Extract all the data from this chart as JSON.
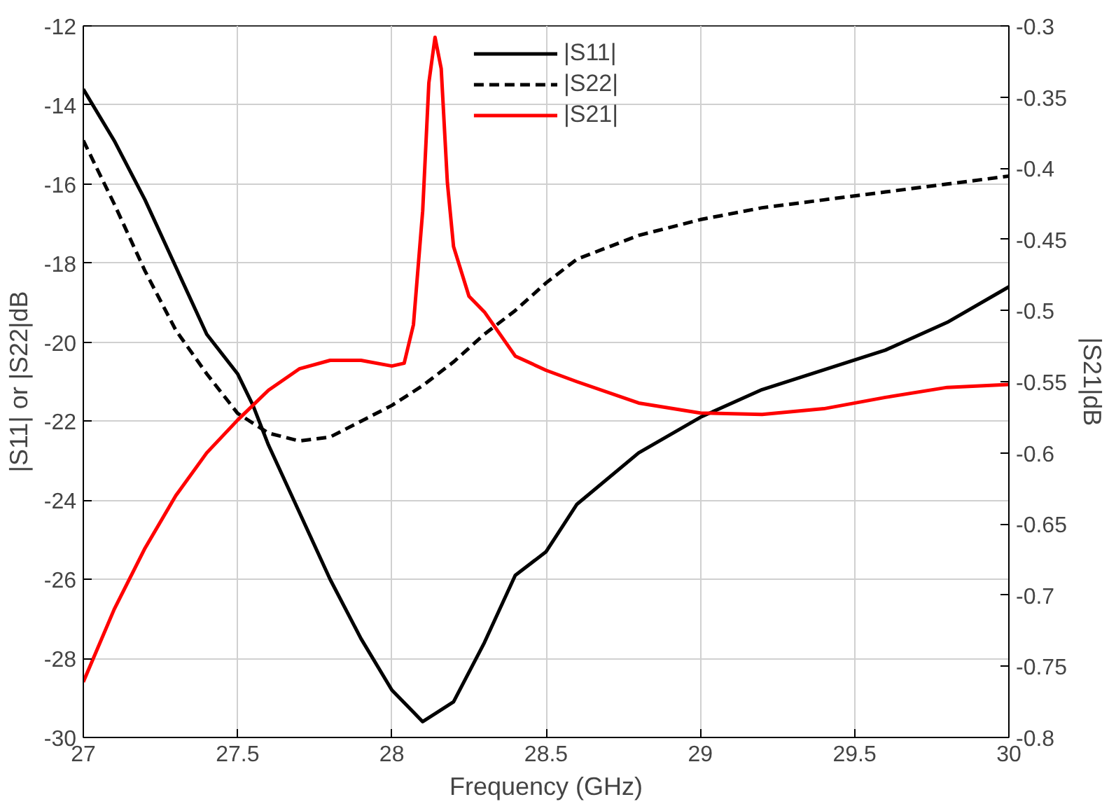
{
  "chart_data": {
    "type": "line",
    "xlabel": "Frequency (GHz)",
    "ylabel": "|S11| or |S22|dB",
    "y2label": "|S21|dB",
    "xlim": [
      27,
      30
    ],
    "xticks": [
      27,
      27.5,
      28,
      28.5,
      29,
      29.5,
      30
    ],
    "ylim": [
      -30,
      -12
    ],
    "yticks": [
      -30,
      -28,
      -26,
      -24,
      -22,
      -20,
      -18,
      -16,
      -14,
      -12
    ],
    "y2lim": [
      -0.8,
      -0.3
    ],
    "y2ticks": [
      -0.8,
      -0.75,
      -0.7,
      -0.65,
      -0.6,
      -0.55,
      -0.5,
      -0.45,
      -0.4,
      -0.35,
      -0.3
    ],
    "grid": true,
    "legend": "top",
    "marker": "none",
    "series": [
      {
        "name": "|S11|",
        "color": "#000000",
        "line_style": "solid",
        "x": [
          27,
          27.1,
          27.2,
          27.3,
          27.4,
          27.5,
          27.55,
          27.6,
          27.7,
          27.8,
          27.9,
          28.0,
          28.1,
          28.2,
          28.3,
          28.4,
          28.5,
          28.6,
          28.8,
          29.0,
          29.2,
          29.4,
          29.6,
          29.8,
          30
        ],
        "values": [
          -13.6,
          -14.9,
          -16.4,
          -18.1,
          -19.8,
          -20.8,
          -21.6,
          -22.6,
          -24.3,
          -26.0,
          -27.5,
          -28.8,
          -29.6,
          -29.1,
          -27.6,
          -25.9,
          -25.3,
          -24.1,
          -22.8,
          -21.9,
          -21.2,
          -20.7,
          -20.2,
          -19.5,
          -18.6
        ]
      },
      {
        "name": "|S22|",
        "color": "#000000",
        "line_style": "dashed",
        "x": [
          27,
          27.1,
          27.2,
          27.3,
          27.4,
          27.5,
          27.6,
          27.7,
          27.8,
          27.9,
          28.0,
          28.1,
          28.2,
          28.3,
          28.4,
          28.5,
          28.6,
          28.8,
          29.0,
          29.2,
          29.4,
          29.6,
          29.8,
          30
        ],
        "values": [
          -14.9,
          -16.5,
          -18.2,
          -19.7,
          -20.8,
          -21.8,
          -22.3,
          -22.5,
          -22.4,
          -22.0,
          -21.6,
          -21.1,
          -20.5,
          -19.8,
          -19.2,
          -18.5,
          -17.9,
          -17.3,
          -16.9,
          -16.6,
          -16.4,
          -16.2,
          -16.0,
          -15.8
        ]
      },
      {
        "name": "|S21|",
        "color": "#ff0000",
        "line_style": "solid",
        "axis": "y2",
        "x": [
          27,
          27.1,
          27.2,
          27.3,
          27.4,
          27.5,
          27.6,
          27.7,
          27.8,
          27.9,
          28.0,
          28.04,
          28.07,
          28.1,
          28.12,
          28.14,
          28.16,
          28.18,
          28.2,
          28.25,
          28.3,
          28.4,
          28.5,
          28.6,
          28.8,
          29.0,
          29.2,
          29.4,
          29.6,
          29.8,
          30
        ],
        "values": [
          -0.761,
          -0.71,
          -0.667,
          -0.63,
          -0.6,
          -0.577,
          -0.556,
          -0.541,
          -0.535,
          -0.535,
          -0.539,
          -0.537,
          -0.51,
          -0.43,
          -0.34,
          -0.308,
          -0.33,
          -0.41,
          -0.455,
          -0.49,
          -0.501,
          -0.532,
          -0.542,
          -0.55,
          -0.565,
          -0.572,
          -0.573,
          -0.569,
          -0.561,
          -0.554,
          -0.552
        ]
      }
    ]
  }
}
